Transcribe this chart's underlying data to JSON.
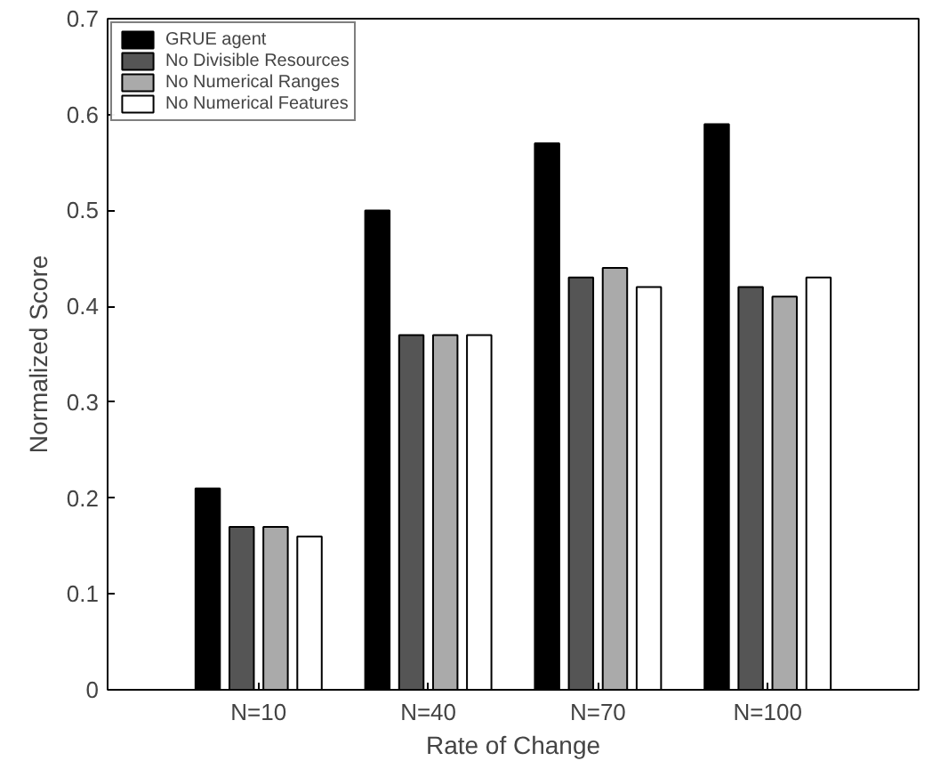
{
  "chart_data": {
    "type": "bar",
    "xlabel": "Rate of Change",
    "ylabel": "Normalized Score",
    "categories": [
      "N=10",
      "N=40",
      "N=70",
      "N=100"
    ],
    "series": [
      {
        "name": "GRUE agent",
        "color": "#000000",
        "values": [
          0.21,
          0.5,
          0.57,
          0.59
        ]
      },
      {
        "name": "No Divisible Resources",
        "color": "#555555",
        "values": [
          0.17,
          0.37,
          0.43,
          0.42
        ]
      },
      {
        "name": "No Numerical Ranges",
        "color": "#aaaaaa",
        "values": [
          0.17,
          0.37,
          0.44,
          0.41
        ]
      },
      {
        "name": "No Numerical Features",
        "color": "#ffffff",
        "values": [
          0.16,
          0.37,
          0.42,
          0.43
        ]
      }
    ],
    "ylim": [
      0,
      0.7
    ],
    "yticks": [
      0,
      0.1,
      0.2,
      0.3,
      0.4,
      0.5,
      0.6,
      0.7
    ],
    "grid": false,
    "legend": "top left"
  }
}
